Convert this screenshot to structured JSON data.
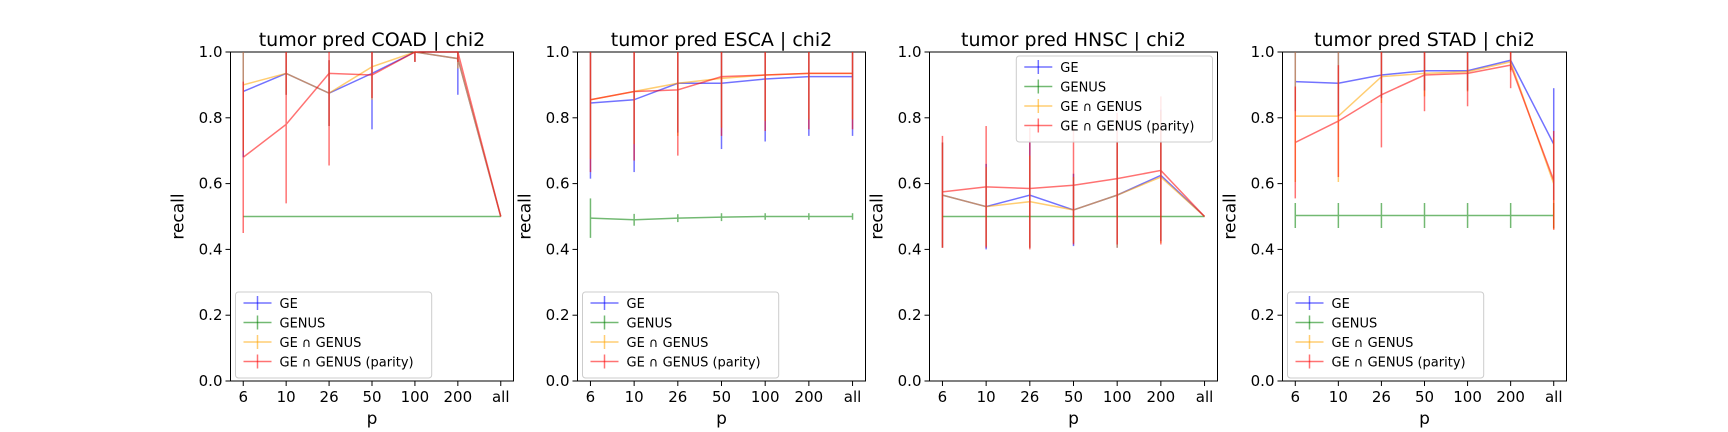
{
  "chart_data": [
    {
      "type": "line",
      "title": "tumor pred COAD | chi2",
      "xlabel": "p",
      "ylabel": "recall",
      "categories": [
        "6",
        "10",
        "26",
        "50",
        "100",
        "200",
        "all"
      ],
      "ylim": [
        0.0,
        1.0
      ],
      "yticks": [
        "0.0",
        "0.2",
        "0.4",
        "0.6",
        "0.8",
        "1.0"
      ],
      "legend": "lower-left",
      "series": [
        {
          "name": "GE",
          "color": "#0000ff",
          "values": [
            0.88,
            0.935,
            0.875,
            0.935,
            1.0,
            0.98,
            0.5
          ],
          "err": [
            0.2,
            0.065,
            0.1,
            0.17,
            0.03,
            0.11,
            0.0
          ]
        },
        {
          "name": "GENUS",
          "color": "#008000",
          "values": [
            0.5,
            0.5,
            0.5,
            0.5,
            0.5,
            0.5,
            0.5
          ],
          "err": [
            0,
            0,
            0,
            0,
            0,
            0,
            0
          ]
        },
        {
          "name": "GE ∩ GENUS",
          "color": "#ffa500",
          "values": [
            0.9,
            0.935,
            0.875,
            0.955,
            1.0,
            0.98,
            0.5
          ],
          "err": [
            0.2,
            0.065,
            0.1,
            0.1,
            0.03,
            0.03,
            0.0
          ]
        },
        {
          "name": "GE ∩ GENUS (parity)",
          "color": "#ff0000",
          "values": [
            0.68,
            0.78,
            0.935,
            0.93,
            1.0,
            1.0,
            0.5
          ],
          "err": [
            0.23,
            0.24,
            0.28,
            0.07,
            0.03,
            0.03,
            0.0
          ]
        }
      ]
    },
    {
      "type": "line",
      "title": "tumor pred ESCA | chi2",
      "xlabel": "p",
      "ylabel": "recall",
      "categories": [
        "6",
        "10",
        "26",
        "50",
        "100",
        "200",
        "all"
      ],
      "ylim": [
        0.0,
        1.0
      ],
      "yticks": [
        "0.0",
        "0.2",
        "0.4",
        "0.6",
        "0.8",
        "1.0"
      ],
      "legend": "lower-left",
      "series": [
        {
          "name": "GE",
          "color": "#0000ff",
          "values": [
            0.845,
            0.855,
            0.905,
            0.905,
            0.918,
            0.925,
            0.925
          ],
          "err": [
            0.23,
            0.22,
            0.15,
            0.2,
            0.19,
            0.18,
            0.18
          ]
        },
        {
          "name": "GENUS",
          "color": "#008000",
          "values": [
            0.495,
            0.49,
            0.495,
            0.498,
            0.5,
            0.5,
            0.5
          ],
          "err": [
            0.06,
            0.018,
            0.012,
            0.012,
            0.01,
            0.01,
            0.01
          ]
        },
        {
          "name": "GE ∩ GENUS",
          "color": "#ffa500",
          "values": [
            0.855,
            0.88,
            0.905,
            0.92,
            0.93,
            0.935,
            0.935
          ],
          "err": [
            0.18,
            0.16,
            0.16,
            0.15,
            0.14,
            0.14,
            0.14
          ]
        },
        {
          "name": "GE ∩ GENUS (parity)",
          "color": "#ff0000",
          "values": [
            0.855,
            0.88,
            0.885,
            0.925,
            0.93,
            0.935,
            0.935
          ],
          "err": [
            0.22,
            0.21,
            0.2,
            0.18,
            0.17,
            0.17,
            0.17
          ]
        }
      ]
    },
    {
      "type": "line",
      "title": "tumor pred HNSC | chi2",
      "xlabel": "p",
      "ylabel": "recall",
      "categories": [
        "6",
        "10",
        "26",
        "50",
        "100",
        "200",
        "all"
      ],
      "ylim": [
        0.0,
        1.0
      ],
      "yticks": [
        "0.0",
        "0.2",
        "0.4",
        "0.6",
        "0.8",
        "1.0"
      ],
      "legend": "upper-right",
      "series": [
        {
          "name": "GE",
          "color": "#0000ff",
          "values": [
            0.565,
            0.53,
            0.565,
            0.52,
            0.565,
            0.625,
            0.5
          ],
          "err": [
            0.16,
            0.13,
            0.16,
            0.11,
            0.16,
            0.2,
            0.0
          ]
        },
        {
          "name": "GENUS",
          "color": "#008000",
          "values": [
            0.5,
            0.5,
            0.5,
            0.5,
            0.5,
            0.5,
            0.5
          ],
          "err": [
            0,
            0,
            0,
            0,
            0,
            0,
            0
          ]
        },
        {
          "name": "GE ∩ GENUS",
          "color": "#ffa500",
          "values": [
            0.565,
            0.53,
            0.545,
            0.52,
            0.565,
            0.62,
            0.5
          ],
          "err": [
            0.16,
            0.12,
            0.14,
            0.1,
            0.16,
            0.2,
            0.0
          ]
        },
        {
          "name": "GE ∩ GENUS (parity)",
          "color": "#ff0000",
          "values": [
            0.575,
            0.59,
            0.585,
            0.595,
            0.615,
            0.64,
            0.5
          ],
          "err": [
            0.17,
            0.185,
            0.185,
            0.18,
            0.2,
            0.225,
            0.0
          ]
        }
      ]
    },
    {
      "type": "line",
      "title": "tumor pred STAD | chi2",
      "xlabel": "p",
      "ylabel": "recall",
      "categories": [
        "6",
        "10",
        "26",
        "50",
        "100",
        "200",
        "all"
      ],
      "ylim": [
        0.0,
        1.0
      ],
      "yticks": [
        "0.0",
        "0.2",
        "0.4",
        "0.6",
        "0.8",
        "1.0"
      ],
      "legend": "lower-left",
      "series": [
        {
          "name": "GE",
          "color": "#0000ff",
          "values": [
            0.91,
            0.905,
            0.93,
            0.943,
            0.943,
            0.975,
            0.72
          ],
          "err": [
            0.09,
            0.1,
            0.07,
            0.06,
            0.06,
            0.03,
            0.17
          ]
        },
        {
          "name": "GENUS",
          "color": "#008000",
          "values": [
            0.503,
            0.503,
            0.503,
            0.503,
            0.503,
            0.503,
            0.503
          ],
          "err": [
            0.038,
            0.038,
            0.038,
            0.038,
            0.038,
            0.038,
            0.038
          ]
        },
        {
          "name": "GE ∩ GENUS",
          "color": "#ffa500",
          "values": [
            0.805,
            0.805,
            0.925,
            0.935,
            0.94,
            0.97,
            0.6
          ],
          "err": [
            0.2,
            0.2,
            0.08,
            0.07,
            0.06,
            0.03,
            0.14
          ]
        },
        {
          "name": "GE ∩ GENUS (parity)",
          "color": "#ff0000",
          "values": [
            0.725,
            0.79,
            0.87,
            0.93,
            0.935,
            0.96,
            0.61
          ],
          "err": [
            0.17,
            0.17,
            0.16,
            0.11,
            0.1,
            0.07,
            0.15
          ]
        }
      ]
    }
  ]
}
